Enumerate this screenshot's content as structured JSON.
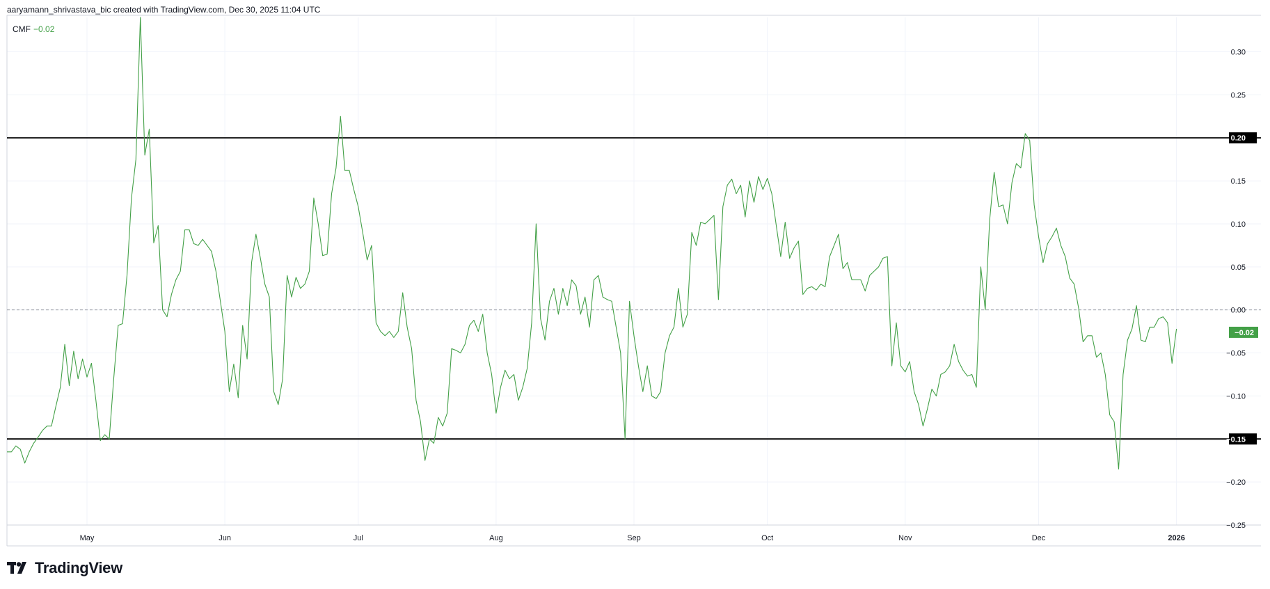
{
  "header": {
    "credit": "aaryamann_shrivastava_bic created with TradingView.com, Dec 30, 2025 11:04 UTC"
  },
  "legend": {
    "name": "CMF",
    "value": "−0.02"
  },
  "brand": {
    "name": "TradingView"
  },
  "colors": {
    "series": "#43a047",
    "level": "#000000",
    "grid": "#f0f3fa",
    "zero": "#9598a1"
  },
  "chart_data": {
    "type": "line",
    "series": [
      {
        "name": "CMF",
        "color": "#43a047"
      }
    ],
    "ylim": [
      -0.25,
      0.34
    ],
    "y_ticks": [
      0.3,
      0.25,
      0.15,
      0.1,
      0.05,
      0.0,
      -0.05,
      -0.1,
      -0.2,
      -0.25
    ],
    "y_tick_labels": [
      "0.30",
      "0.25",
      "0.15",
      "0.10",
      "0.05",
      "0.00",
      "−0.05",
      "−0.10",
      "−0.20",
      "−0.25"
    ],
    "x_ticks": [
      {
        "label": "May",
        "date": "2025-05-01"
      },
      {
        "label": "Jun",
        "date": "2025-06-01"
      },
      {
        "label": "Jul",
        "date": "2025-07-01"
      },
      {
        "label": "Aug",
        "date": "2025-08-01"
      },
      {
        "label": "Sep",
        "date": "2025-09-01"
      },
      {
        "label": "Oct",
        "date": "2025-10-01"
      },
      {
        "label": "Nov",
        "date": "2025-11-01"
      },
      {
        "label": "Dec",
        "date": "2025-12-01"
      },
      {
        "label": "2026",
        "date": "2026-01-01"
      }
    ],
    "xlim": [
      "2025-04-13",
      "2026-01-20"
    ],
    "levels": [
      {
        "value": 0.2,
        "label": "0.20"
      },
      {
        "value": -0.15,
        "label": "−0.15"
      }
    ],
    "zero_line": 0.0,
    "last_value_label": "−0.02",
    "points": [
      [
        "2025-04-13",
        -0.165
      ],
      [
        "2025-04-14",
        -0.165
      ],
      [
        "2025-04-15",
        -0.158
      ],
      [
        "2025-04-16",
        -0.162
      ],
      [
        "2025-04-17",
        -0.178
      ],
      [
        "2025-04-18",
        -0.165
      ],
      [
        "2025-04-19",
        -0.155
      ],
      [
        "2025-04-20",
        -0.148
      ],
      [
        "2025-04-21",
        -0.14
      ],
      [
        "2025-04-22",
        -0.135
      ],
      [
        "2025-04-23",
        -0.135
      ],
      [
        "2025-04-24",
        -0.112
      ],
      [
        "2025-04-25",
        -0.09
      ],
      [
        "2025-04-26",
        -0.04
      ],
      [
        "2025-04-27",
        -0.088
      ],
      [
        "2025-04-28",
        -0.048
      ],
      [
        "2025-04-29",
        -0.08
      ],
      [
        "2025-04-30",
        -0.057
      ],
      [
        "2025-05-01",
        -0.078
      ],
      [
        "2025-05-02",
        -0.062
      ],
      [
        "2025-05-03",
        -0.105
      ],
      [
        "2025-05-04",
        -0.152
      ],
      [
        "2025-05-05",
        -0.145
      ],
      [
        "2025-05-06",
        -0.15
      ],
      [
        "2025-05-07",
        -0.08
      ],
      [
        "2025-05-08",
        -0.018
      ],
      [
        "2025-05-09",
        -0.016
      ],
      [
        "2025-05-10",
        0.04
      ],
      [
        "2025-05-11",
        0.13
      ],
      [
        "2025-05-12",
        0.175
      ],
      [
        "2025-05-13",
        0.34
      ],
      [
        "2025-05-14",
        0.18
      ],
      [
        "2025-05-15",
        0.21
      ],
      [
        "2025-05-16",
        0.078
      ],
      [
        "2025-05-17",
        0.098
      ],
      [
        "2025-05-18",
        0.0
      ],
      [
        "2025-05-19",
        -0.008
      ],
      [
        "2025-05-20",
        0.018
      ],
      [
        "2025-05-21",
        0.035
      ],
      [
        "2025-05-22",
        0.045
      ],
      [
        "2025-05-23",
        0.093
      ],
      [
        "2025-05-24",
        0.093
      ],
      [
        "2025-05-25",
        0.077
      ],
      [
        "2025-05-26",
        0.075
      ],
      [
        "2025-05-27",
        0.082
      ],
      [
        "2025-05-28",
        0.075
      ],
      [
        "2025-05-29",
        0.068
      ],
      [
        "2025-05-30",
        0.045
      ],
      [
        "2025-05-31",
        0.01
      ],
      [
        "2025-06-01",
        -0.025
      ],
      [
        "2025-06-02",
        -0.095
      ],
      [
        "2025-06-03",
        -0.063
      ],
      [
        "2025-06-04",
        -0.102
      ],
      [
        "2025-06-05",
        -0.018
      ],
      [
        "2025-06-06",
        -0.057
      ],
      [
        "2025-06-07",
        0.055
      ],
      [
        "2025-06-08",
        0.088
      ],
      [
        "2025-06-09",
        0.06
      ],
      [
        "2025-06-10",
        0.03
      ],
      [
        "2025-06-11",
        0.015
      ],
      [
        "2025-06-12",
        -0.095
      ],
      [
        "2025-06-13",
        -0.11
      ],
      [
        "2025-06-14",
        -0.08
      ],
      [
        "2025-06-15",
        0.04
      ],
      [
        "2025-06-16",
        0.015
      ],
      [
        "2025-06-17",
        0.038
      ],
      [
        "2025-06-18",
        0.025
      ],
      [
        "2025-06-19",
        0.03
      ],
      [
        "2025-06-20",
        0.045
      ],
      [
        "2025-06-21",
        0.13
      ],
      [
        "2025-06-22",
        0.1
      ],
      [
        "2025-06-23",
        0.063
      ],
      [
        "2025-06-24",
        0.065
      ],
      [
        "2025-06-25",
        0.135
      ],
      [
        "2025-06-26",
        0.165
      ],
      [
        "2025-06-27",
        0.225
      ],
      [
        "2025-06-28",
        0.162
      ],
      [
        "2025-06-29",
        0.162
      ],
      [
        "2025-06-30",
        0.14
      ],
      [
        "2025-07-01",
        0.12
      ],
      [
        "2025-07-02",
        0.09
      ],
      [
        "2025-07-03",
        0.058
      ],
      [
        "2025-07-04",
        0.075
      ],
      [
        "2025-07-05",
        -0.015
      ],
      [
        "2025-07-06",
        -0.025
      ],
      [
        "2025-07-07",
        -0.03
      ],
      [
        "2025-07-08",
        -0.025
      ],
      [
        "2025-07-09",
        -0.032
      ],
      [
        "2025-07-10",
        -0.025
      ],
      [
        "2025-07-11",
        0.02
      ],
      [
        "2025-07-12",
        -0.02
      ],
      [
        "2025-07-13",
        -0.045
      ],
      [
        "2025-07-14",
        -0.105
      ],
      [
        "2025-07-15",
        -0.13
      ],
      [
        "2025-07-16",
        -0.175
      ],
      [
        "2025-07-17",
        -0.15
      ],
      [
        "2025-07-18",
        -0.155
      ],
      [
        "2025-07-19",
        -0.125
      ],
      [
        "2025-07-20",
        -0.135
      ],
      [
        "2025-07-21",
        -0.12
      ],
      [
        "2025-07-22",
        -0.045
      ],
      [
        "2025-07-23",
        -0.047
      ],
      [
        "2025-07-24",
        -0.05
      ],
      [
        "2025-07-25",
        -0.04
      ],
      [
        "2025-07-26",
        -0.018
      ],
      [
        "2025-07-27",
        -0.012
      ],
      [
        "2025-07-28",
        -0.025
      ],
      [
        "2025-07-29",
        -0.005
      ],
      [
        "2025-07-30",
        -0.05
      ],
      [
        "2025-07-31",
        -0.075
      ],
      [
        "2025-08-01",
        -0.12
      ],
      [
        "2025-08-02",
        -0.09
      ],
      [
        "2025-08-03",
        -0.07
      ],
      [
        "2025-08-04",
        -0.08
      ],
      [
        "2025-08-05",
        -0.075
      ],
      [
        "2025-08-06",
        -0.105
      ],
      [
        "2025-08-07",
        -0.09
      ],
      [
        "2025-08-08",
        -0.068
      ],
      [
        "2025-08-09",
        -0.015
      ],
      [
        "2025-08-10",
        0.1
      ],
      [
        "2025-08-11",
        -0.01
      ],
      [
        "2025-08-12",
        -0.035
      ],
      [
        "2025-08-13",
        0.01
      ],
      [
        "2025-08-14",
        0.025
      ],
      [
        "2025-08-15",
        -0.005
      ],
      [
        "2025-08-16",
        0.025
      ],
      [
        "2025-08-17",
        0.005
      ],
      [
        "2025-08-18",
        0.035
      ],
      [
        "2025-08-19",
        0.028
      ],
      [
        "2025-08-20",
        -0.005
      ],
      [
        "2025-08-21",
        0.015
      ],
      [
        "2025-08-22",
        -0.02
      ],
      [
        "2025-08-23",
        0.035
      ],
      [
        "2025-08-24",
        0.04
      ],
      [
        "2025-08-25",
        0.015
      ],
      [
        "2025-08-26",
        0.012
      ],
      [
        "2025-08-27",
        0.01
      ],
      [
        "2025-08-28",
        -0.02
      ],
      [
        "2025-08-29",
        -0.05
      ],
      [
        "2025-08-30",
        -0.15
      ],
      [
        "2025-08-31",
        0.01
      ],
      [
        "2025-09-01",
        -0.03
      ],
      [
        "2025-09-02",
        -0.065
      ],
      [
        "2025-09-03",
        -0.095
      ],
      [
        "2025-09-04",
        -0.065
      ],
      [
        "2025-09-05",
        -0.1
      ],
      [
        "2025-09-06",
        -0.103
      ],
      [
        "2025-09-07",
        -0.095
      ],
      [
        "2025-09-08",
        -0.05
      ],
      [
        "2025-09-09",
        -0.03
      ],
      [
        "2025-09-10",
        -0.02
      ],
      [
        "2025-09-11",
        0.025
      ],
      [
        "2025-09-12",
        -0.02
      ],
      [
        "2025-09-13",
        -0.005
      ],
      [
        "2025-09-14",
        0.09
      ],
      [
        "2025-09-15",
        0.075
      ],
      [
        "2025-09-16",
        0.102
      ],
      [
        "2025-09-17",
        0.1
      ],
      [
        "2025-09-18",
        0.105
      ],
      [
        "2025-09-19",
        0.11
      ],
      [
        "2025-09-20",
        0.012
      ],
      [
        "2025-09-21",
        0.12
      ],
      [
        "2025-09-22",
        0.145
      ],
      [
        "2025-09-23",
        0.152
      ],
      [
        "2025-09-24",
        0.135
      ],
      [
        "2025-09-25",
        0.145
      ],
      [
        "2025-09-26",
        0.108
      ],
      [
        "2025-09-27",
        0.15
      ],
      [
        "2025-09-28",
        0.125
      ],
      [
        "2025-09-29",
        0.155
      ],
      [
        "2025-09-30",
        0.14
      ],
      [
        "2025-10-01",
        0.153
      ],
      [
        "2025-10-02",
        0.135
      ],
      [
        "2025-10-03",
        0.098
      ],
      [
        "2025-10-04",
        0.062
      ],
      [
        "2025-10-05",
        0.102
      ],
      [
        "2025-10-06",
        0.06
      ],
      [
        "2025-10-07",
        0.072
      ],
      [
        "2025-10-08",
        0.08
      ],
      [
        "2025-10-09",
        0.018
      ],
      [
        "2025-10-10",
        0.025
      ],
      [
        "2025-10-11",
        0.027
      ],
      [
        "2025-10-12",
        0.023
      ],
      [
        "2025-10-13",
        0.03
      ],
      [
        "2025-10-14",
        0.027
      ],
      [
        "2025-10-15",
        0.062
      ],
      [
        "2025-10-16",
        0.075
      ],
      [
        "2025-10-17",
        0.088
      ],
      [
        "2025-10-18",
        0.048
      ],
      [
        "2025-10-19",
        0.055
      ],
      [
        "2025-10-20",
        0.035
      ],
      [
        "2025-10-21",
        0.035
      ],
      [
        "2025-10-22",
        0.035
      ],
      [
        "2025-10-23",
        0.022
      ],
      [
        "2025-10-24",
        0.04
      ],
      [
        "2025-10-25",
        0.045
      ],
      [
        "2025-10-26",
        0.05
      ],
      [
        "2025-10-27",
        0.06
      ],
      [
        "2025-10-28",
        0.062
      ],
      [
        "2025-10-29",
        -0.065
      ],
      [
        "2025-10-30",
        -0.015
      ],
      [
        "2025-10-31",
        -0.065
      ],
      [
        "2025-11-01",
        -0.072
      ],
      [
        "2025-11-02",
        -0.06
      ],
      [
        "2025-11-03",
        -0.095
      ],
      [
        "2025-11-04",
        -0.11
      ],
      [
        "2025-11-05",
        -0.135
      ],
      [
        "2025-11-06",
        -0.115
      ],
      [
        "2025-11-07",
        -0.092
      ],
      [
        "2025-11-08",
        -0.1
      ],
      [
        "2025-11-09",
        -0.075
      ],
      [
        "2025-11-10",
        -0.072
      ],
      [
        "2025-11-11",
        -0.065
      ],
      [
        "2025-11-12",
        -0.04
      ],
      [
        "2025-11-13",
        -0.06
      ],
      [
        "2025-11-14",
        -0.07
      ],
      [
        "2025-11-15",
        -0.077
      ],
      [
        "2025-11-16",
        -0.075
      ],
      [
        "2025-11-17",
        -0.09
      ],
      [
        "2025-11-18",
        0.05
      ],
      [
        "2025-11-19",
        0.0
      ],
      [
        "2025-11-20",
        0.105
      ],
      [
        "2025-11-21",
        0.16
      ],
      [
        "2025-11-22",
        0.12
      ],
      [
        "2025-11-23",
        0.122
      ],
      [
        "2025-11-24",
        0.1
      ],
      [
        "2025-11-25",
        0.148
      ],
      [
        "2025-11-26",
        0.17
      ],
      [
        "2025-11-27",
        0.165
      ],
      [
        "2025-11-28",
        0.205
      ],
      [
        "2025-11-29",
        0.197
      ],
      [
        "2025-11-30",
        0.122
      ],
      [
        "2025-12-01",
        0.085
      ],
      [
        "2025-12-02",
        0.055
      ],
      [
        "2025-12-03",
        0.077
      ],
      [
        "2025-12-04",
        0.085
      ],
      [
        "2025-12-05",
        0.095
      ],
      [
        "2025-12-06",
        0.075
      ],
      [
        "2025-12-07",
        0.062
      ],
      [
        "2025-12-08",
        0.037
      ],
      [
        "2025-12-09",
        0.03
      ],
      [
        "2025-12-10",
        0.002
      ],
      [
        "2025-12-11",
        -0.037
      ],
      [
        "2025-12-12",
        -0.03
      ],
      [
        "2025-12-13",
        -0.03
      ],
      [
        "2025-12-14",
        -0.055
      ],
      [
        "2025-12-15",
        -0.05
      ],
      [
        "2025-12-16",
        -0.075
      ],
      [
        "2025-12-17",
        -0.122
      ],
      [
        "2025-12-18",
        -0.13
      ],
      [
        "2025-12-19",
        -0.185
      ],
      [
        "2025-12-20",
        -0.075
      ],
      [
        "2025-12-21",
        -0.035
      ],
      [
        "2025-12-22",
        -0.022
      ],
      [
        "2025-12-23",
        0.005
      ],
      [
        "2025-12-24",
        -0.035
      ],
      [
        "2025-12-25",
        -0.037
      ],
      [
        "2025-12-26",
        -0.02
      ],
      [
        "2025-12-27",
        -0.02
      ],
      [
        "2025-12-28",
        -0.01
      ],
      [
        "2025-12-29",
        -0.008
      ],
      [
        "2025-12-30",
        -0.015
      ],
      [
        "2025-12-31",
        -0.062
      ],
      [
        "2026-01-01",
        -0.022
      ]
    ]
  }
}
